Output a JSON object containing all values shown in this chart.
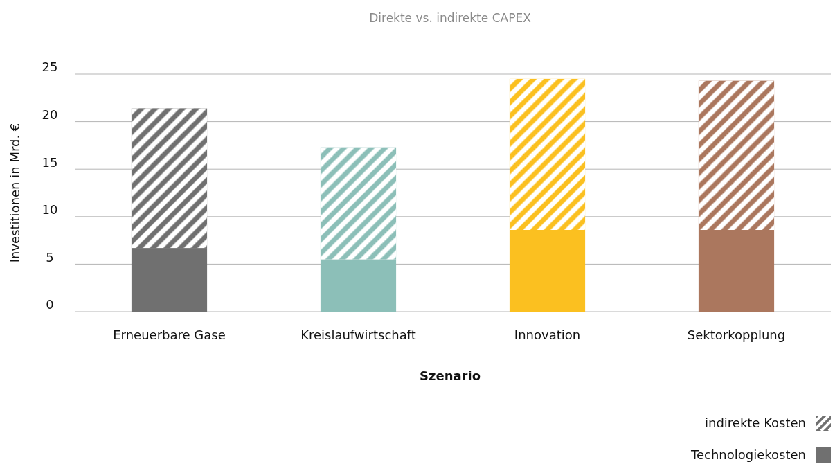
{
  "chart_data": {
    "type": "bar",
    "title": "Direkte vs. indirekte CAPEX",
    "xlabel": "Szenario",
    "ylabel": "Investitionen in Mrd. €",
    "categories": [
      "Erneuerbare Gase",
      "Kreislaufwirtschaft",
      "Innovation",
      "Sektorkopplung"
    ],
    "stacked": true,
    "series": [
      {
        "name": "Technologiekosten",
        "color": "#707070",
        "colors": [
          "#707070",
          "#8cbfb8",
          "#fbc020",
          "#ab775e"
        ],
        "values": [
          6.7,
          5.5,
          8.6,
          8.6
        ]
      },
      {
        "name": "indirekte Kosten",
        "color": "#707070",
        "colors": [
          "#707070",
          "#8cbfb8",
          "#fbc020",
          "#ab775e"
        ],
        "values": [
          14.7,
          11.8,
          15.9,
          15.7
        ]
      }
    ],
    "ylim": [
      0,
      25
    ],
    "yticks": [
      0,
      5,
      10,
      15,
      20,
      25
    ],
    "grid": "y",
    "legend": "bottom right"
  }
}
